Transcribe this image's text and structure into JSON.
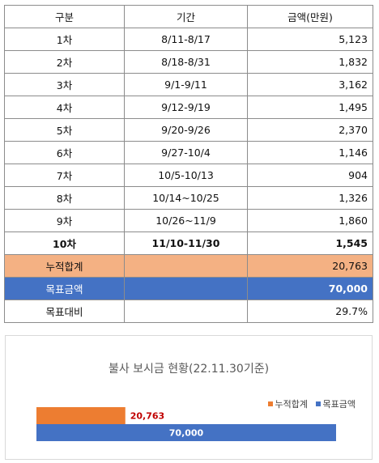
{
  "table": {
    "headers": [
      "구분",
      "기간",
      "금액(만원)"
    ],
    "rows": [
      {
        "label": "1차",
        "period": "8/11-8/17",
        "amount": "5,123"
      },
      {
        "label": "2차",
        "period": "8/18-8/31",
        "amount": "1,832"
      },
      {
        "label": "3차",
        "period": "9/1-9/11",
        "amount": "3,162"
      },
      {
        "label": "4차",
        "period": "9/12-9/19",
        "amount": "1,495"
      },
      {
        "label": "5차",
        "period": "9/20-9/26",
        "amount": "2,370"
      },
      {
        "label": "6차",
        "period": "9/27-10/4",
        "amount": "1,146"
      },
      {
        "label": "7차",
        "period": "10/5-10/13",
        "amount": "904"
      },
      {
        "label": "8차",
        "period": "10/14~10/25",
        "amount": "1,326"
      },
      {
        "label": "9차",
        "period": "10/26~11/9",
        "amount": "1,860"
      },
      {
        "label": "10차",
        "period": "11/10-11/30",
        "amount": "1,545"
      }
    ],
    "cumulative": {
      "label": "누적합계",
      "amount": "20,763"
    },
    "target": {
      "label": "목표금액",
      "amount": "70,000"
    },
    "ratio": {
      "label": "목표대비",
      "amount": "29.7%"
    }
  },
  "colors": {
    "cumulative_row": "#f4b183",
    "target_row": "#4472c4",
    "cumulative_bar": "#ed7d31",
    "target_bar": "#4472c4",
    "cumulative_value_label": "#c00000"
  },
  "chart_data": {
    "type": "bar",
    "orientation": "horizontal",
    "title": "불사 보시금 현황(22.11.30기준)",
    "xlabel": "",
    "ylabel": "",
    "xlim": [
      0,
      70000
    ],
    "grid": false,
    "legend_position": "top-right",
    "series": [
      {
        "name": "누적합계",
        "values": [
          20763
        ],
        "label": "20,763"
      },
      {
        "name": "목표금액",
        "values": [
          70000
        ],
        "label": "70,000"
      }
    ]
  }
}
